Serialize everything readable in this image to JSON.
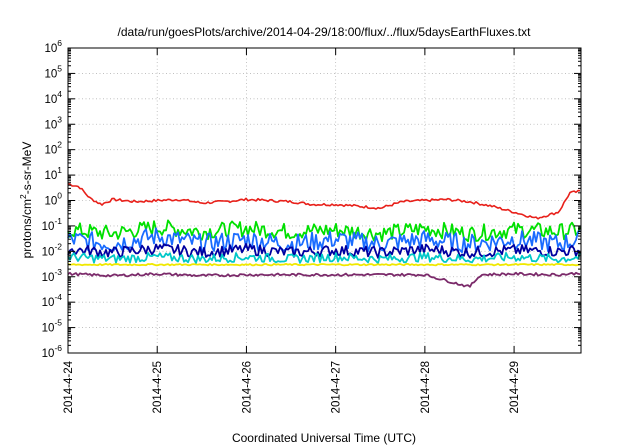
{
  "chart_data": {
    "type": "line",
    "title": "/data/run/goesPlots/archive/2014-04-29/18:00/flux/../flux/5daysEarthFluxes.txt",
    "xlabel": "Coordinated Universal Time (UTC)",
    "ylabel": "protons/cm²-s-sr-MeV",
    "xlim": [
      "2014-04-24",
      "2014-04-29T18:00"
    ],
    "x_ticks": [
      "2014-4-24",
      "2014-4-25",
      "2014-4-26",
      "2014-4-27",
      "2014-4-28",
      "2014-4-29"
    ],
    "yscale": "log",
    "ylim": [
      1e-06,
      1000000.0
    ],
    "y_ticks": [
      "10-6",
      "10-5",
      "10-4",
      "10-3",
      "10-2",
      "10-1",
      "100",
      "101",
      "102",
      "103",
      "104",
      "105",
      "106"
    ],
    "grid": true,
    "legend": "none",
    "series": [
      {
        "color": "#e8201a",
        "points": [
          [
            "2014-04-24T00:00",
            4.5
          ],
          [
            "2014-04-24T03:00",
            3.5
          ],
          [
            "2014-04-24T06:00",
            1.2
          ],
          [
            "2014-04-24T09:00",
            0.7
          ],
          [
            "2014-04-24T12:00",
            1.1
          ],
          [
            "2014-04-24T18:00",
            0.9
          ],
          [
            "2014-04-25T00:00",
            1.0
          ],
          [
            "2014-04-25T06:00",
            1.1
          ],
          [
            "2014-04-25T12:00",
            0.8
          ],
          [
            "2014-04-25T18:00",
            0.9
          ],
          [
            "2014-04-26T00:00",
            1.1
          ],
          [
            "2014-04-26T06:00",
            1.0
          ],
          [
            "2014-04-26T12:00",
            0.9
          ],
          [
            "2014-04-26T18:00",
            0.7
          ],
          [
            "2014-04-27T00:00",
            0.7
          ],
          [
            "2014-04-27T06:00",
            0.6
          ],
          [
            "2014-04-27T12:00",
            0.5
          ],
          [
            "2014-04-27T18:00",
            0.9
          ],
          [
            "2014-04-28T00:00",
            1.0
          ],
          [
            "2014-04-28T06:00",
            1.1
          ],
          [
            "2014-04-28T12:00",
            0.9
          ],
          [
            "2014-04-28T18:00",
            0.6
          ],
          [
            "2014-04-29T00:00",
            0.35
          ],
          [
            "2014-04-29T06:00",
            0.2
          ],
          [
            "2014-04-29T12:00",
            0.35
          ],
          [
            "2014-04-29T15:00",
            2.0
          ],
          [
            "2014-04-29T18:00",
            2.3
          ]
        ]
      },
      {
        "color": "#00e000",
        "points": [
          [
            "2014-04-24T00:00",
            0.07
          ],
          [
            "2014-04-24T12:00",
            0.05
          ],
          [
            "2014-04-25T00:00",
            0.09
          ],
          [
            "2014-04-25T12:00",
            0.06
          ],
          [
            "2014-04-26T00:00",
            0.08
          ],
          [
            "2014-04-26T12:00",
            0.06
          ],
          [
            "2014-04-27T00:00",
            0.07
          ],
          [
            "2014-04-27T12:00",
            0.05
          ],
          [
            "2014-04-28T00:00",
            0.08
          ],
          [
            "2014-04-28T12:00",
            0.05
          ],
          [
            "2014-04-29T00:00",
            0.07
          ],
          [
            "2014-04-29T12:00",
            0.06
          ],
          [
            "2014-04-29T18:00",
            0.07
          ]
        ]
      },
      {
        "color": "#1a6cff",
        "points": [
          [
            "2014-04-24T00:00",
            0.03
          ],
          [
            "2014-04-24T12:00",
            0.02
          ],
          [
            "2014-04-25T00:00",
            0.04
          ],
          [
            "2014-04-25T12:00",
            0.02
          ],
          [
            "2014-04-26T00:00",
            0.03
          ],
          [
            "2014-04-26T12:00",
            0.02
          ],
          [
            "2014-04-27T00:00",
            0.03
          ],
          [
            "2014-04-27T12:00",
            0.02
          ],
          [
            "2014-04-28T00:00",
            0.03
          ],
          [
            "2014-04-28T12:00",
            0.02
          ],
          [
            "2014-04-29T00:00",
            0.03
          ],
          [
            "2014-04-29T12:00",
            0.02
          ],
          [
            "2014-04-29T18:00",
            0.03
          ]
        ]
      },
      {
        "color": "#0000a0",
        "points": [
          [
            "2014-04-24T00:00",
            0.012
          ],
          [
            "2014-04-24T12:00",
            0.009
          ],
          [
            "2014-04-25T00:00",
            0.013
          ],
          [
            "2014-04-25T12:00",
            0.009
          ],
          [
            "2014-04-26T00:00",
            0.012
          ],
          [
            "2014-04-26T12:00",
            0.009
          ],
          [
            "2014-04-27T00:00",
            0.011
          ],
          [
            "2014-04-27T12:00",
            0.009
          ],
          [
            "2014-04-28T00:00",
            0.012
          ],
          [
            "2014-04-28T12:00",
            0.009
          ],
          [
            "2014-04-29T00:00",
            0.011
          ],
          [
            "2014-04-29T12:00",
            0.01
          ],
          [
            "2014-04-29T18:00",
            0.011
          ]
        ]
      },
      {
        "color": "#00c8c8",
        "points": [
          [
            "2014-04-24T00:00",
            0.006
          ],
          [
            "2014-04-24T12:00",
            0.005
          ],
          [
            "2014-04-25T00:00",
            0.006
          ],
          [
            "2014-04-25T12:00",
            0.005
          ],
          [
            "2014-04-26T00:00",
            0.006
          ],
          [
            "2014-04-26T12:00",
            0.005
          ],
          [
            "2014-04-27T00:00",
            0.006
          ],
          [
            "2014-04-27T12:00",
            0.005
          ],
          [
            "2014-04-28T00:00",
            0.006
          ],
          [
            "2014-04-28T12:00",
            0.005
          ],
          [
            "2014-04-29T00:00",
            0.006
          ],
          [
            "2014-04-29T12:00",
            0.005
          ],
          [
            "2014-04-29T18:00",
            0.006
          ]
        ]
      },
      {
        "color": "#f0e800",
        "points": [
          [
            "2014-04-24T00:00",
            0.003
          ],
          [
            "2014-04-25T00:00",
            0.003
          ],
          [
            "2014-04-26T00:00",
            0.003
          ],
          [
            "2014-04-27T00:00",
            0.003
          ],
          [
            "2014-04-28T00:00",
            0.003
          ],
          [
            "2014-04-29T00:00",
            0.003
          ],
          [
            "2014-04-29T18:00",
            0.003
          ]
        ]
      },
      {
        "color": "#7b2a6a",
        "points": [
          [
            "2014-04-24T00:00",
            0.0013
          ],
          [
            "2014-04-24T12:00",
            0.0011
          ],
          [
            "2014-04-25T00:00",
            0.0013
          ],
          [
            "2014-04-25T12:00",
            0.0011
          ],
          [
            "2014-04-26T00:00",
            0.0012
          ],
          [
            "2014-04-26T12:00",
            0.0012
          ],
          [
            "2014-04-27T00:00",
            0.0012
          ],
          [
            "2014-04-27T12:00",
            0.0012
          ],
          [
            "2014-04-28T00:00",
            0.0012
          ],
          [
            "2014-04-28T12:00",
            0.0004
          ],
          [
            "2014-04-28T15:00",
            0.0012
          ],
          [
            "2014-04-29T00:00",
            0.0013
          ],
          [
            "2014-04-29T12:00",
            0.0012
          ],
          [
            "2014-04-29T18:00",
            0.0014
          ]
        ]
      }
    ]
  }
}
